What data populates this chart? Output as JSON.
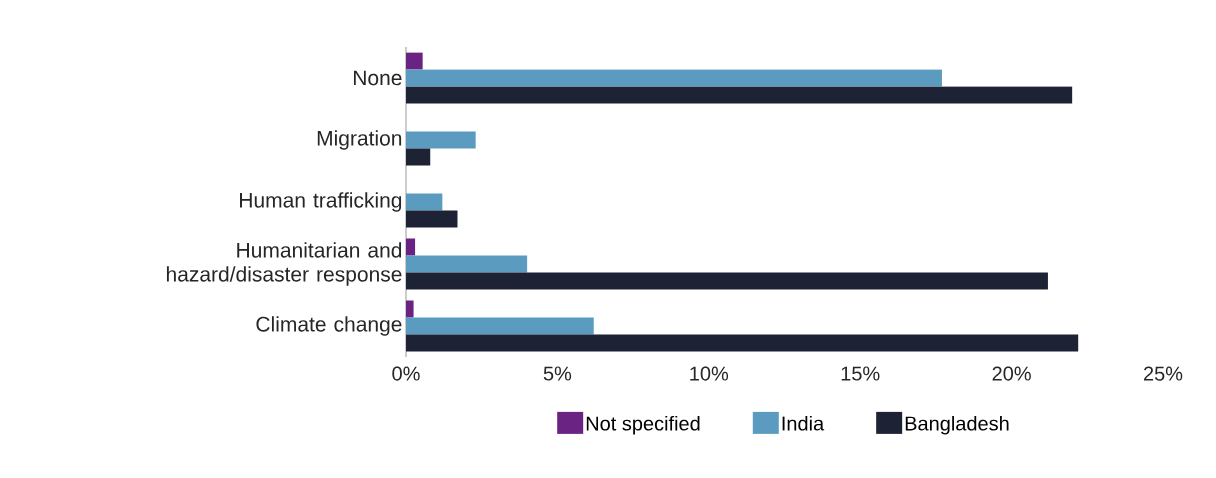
{
  "chart_data": {
    "type": "bar",
    "orientation": "horizontal",
    "categories": [
      "None",
      "Migration",
      "Human trafficking",
      "Humanitarian and hazard/disaster response",
      "Climate change"
    ],
    "series": [
      {
        "name": "Not specified",
        "color": "#6a2383",
        "values": [
          0.55,
          null,
          null,
          0.3,
          0.25
        ]
      },
      {
        "name": "India",
        "color": "#5b9bc0",
        "values": [
          17.7,
          2.3,
          1.2,
          4.0,
          6.2
        ]
      },
      {
        "name": "Bangladesh",
        "color": "#1e2235",
        "values": [
          22.0,
          0.8,
          1.7,
          21.2,
          22.2
        ]
      }
    ],
    "xlim": [
      0,
      25
    ],
    "xticks": [
      {
        "value": 0,
        "label": "0%"
      },
      {
        "value": 5,
        "label": "5%"
      },
      {
        "value": 10,
        "label": "10%"
      },
      {
        "value": 15,
        "label": "15%"
      },
      {
        "value": 20,
        "label": "20%"
      },
      {
        "value": 25,
        "label": "25%"
      }
    ],
    "legend": "bottom"
  }
}
